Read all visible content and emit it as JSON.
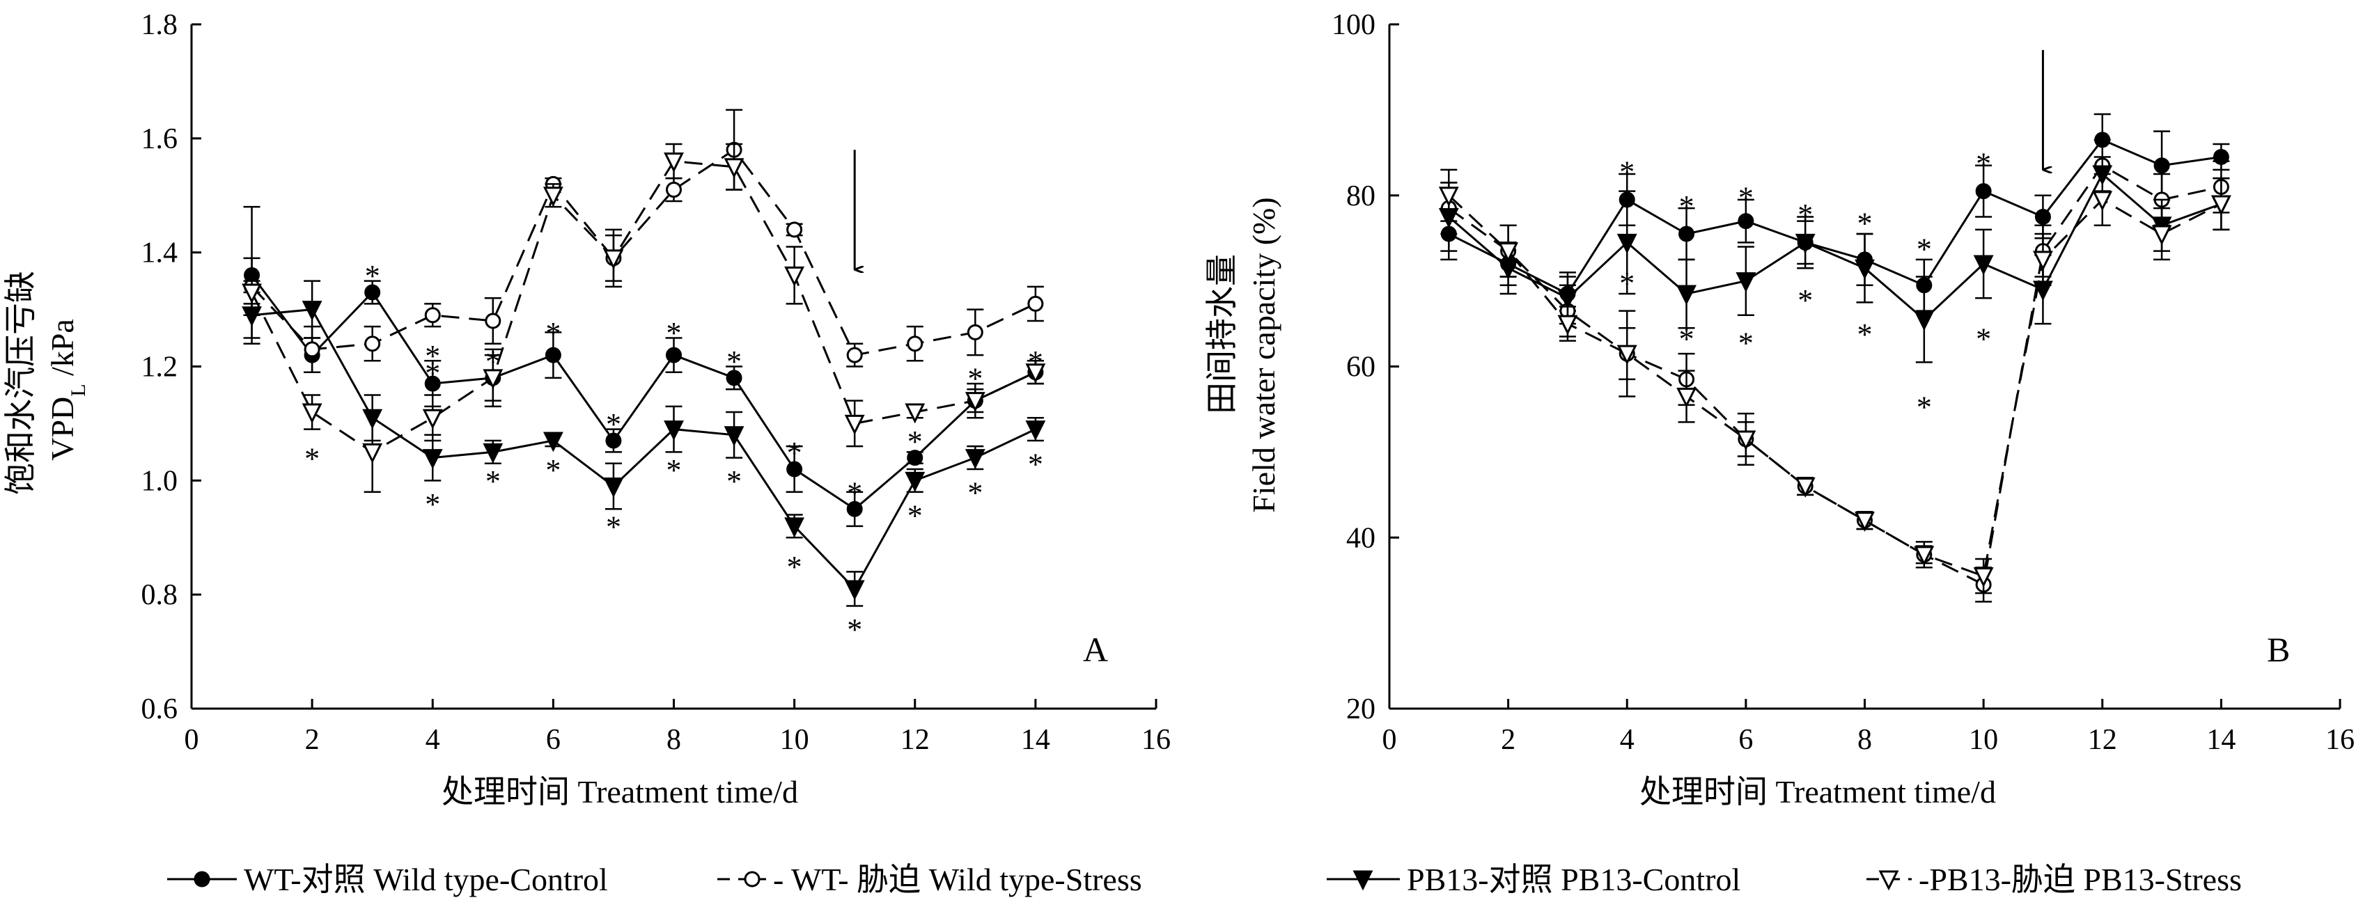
{
  "legend": [
    {
      "label": "WT-对照 Wild type-Control",
      "marker": "filled-circle",
      "dash": "solid"
    },
    {
      "label": "- WT- 胁迫 Wild type-Stress",
      "marker": "open-circle",
      "dash": "dashed"
    },
    {
      "label": "PB13-对照 PB13-Control",
      "marker": "filled-triangle-down",
      "dash": "solid"
    },
    {
      "label": "-PB13-胁迫 PB13-Stress",
      "marker": "open-triangle-down",
      "dash": "dashed"
    }
  ],
  "chart_data": [
    {
      "type": "line",
      "panel_label": "A",
      "xlabel": "处理时间  Treatment time/d",
      "ylabel_cn": "饱和水汽压亏缺",
      "ylabel_en": "VPD",
      "ylabel_sub": "L",
      "ylabel_unit": " /kPa",
      "xlim": [
        0,
        16
      ],
      "ylim": [
        0.6,
        1.8
      ],
      "xticks": [
        0,
        2,
        4,
        6,
        8,
        10,
        12,
        14,
        16
      ],
      "yticks": [
        0.6,
        0.8,
        1.0,
        1.2,
        1.4,
        1.6,
        1.8
      ],
      "ytick_labels": [
        "0.6",
        "0.8",
        "1.0",
        "1.2",
        "1.4",
        "1.6",
        "1.8"
      ],
      "arrow_at": {
        "x": 11,
        "y_from": 1.58,
        "y_to": 1.37
      },
      "series": [
        {
          "id": "wt_control",
          "marker": "filled-circle",
          "dash": "solid",
          "x": [
            1,
            2,
            3,
            4,
            5,
            6,
            7,
            8,
            9,
            10,
            11,
            12,
            13,
            14
          ],
          "y": [
            1.36,
            1.22,
            1.33,
            1.17,
            1.18,
            1.22,
            1.07,
            1.22,
            1.18,
            1.02,
            0.95,
            1.04,
            1.14,
            1.19
          ],
          "err": [
            0.12,
            0.03,
            0.02,
            0.04,
            0.04,
            0.04,
            0.02,
            0.03,
            0.02,
            0.04,
            0.03,
            0.01,
            0.03,
            0.02
          ]
        },
        {
          "id": "wt_stress",
          "marker": "open-circle",
          "dash": "dashed",
          "x": [
            1,
            2,
            3,
            4,
            5,
            6,
            7,
            8,
            9,
            10,
            11,
            12,
            13,
            14
          ],
          "y": [
            1.34,
            1.23,
            1.24,
            1.29,
            1.28,
            1.52,
            1.39,
            1.51,
            1.58,
            1.44,
            1.22,
            1.24,
            1.26,
            1.31
          ],
          "err": [
            0.05,
            0.04,
            0.03,
            0.02,
            0.04,
            0.01,
            0.05,
            0.02,
            0.07,
            0.01,
            0.02,
            0.03,
            0.04,
            0.03
          ]
        },
        {
          "id": "pb13_control",
          "marker": "filled-triangle-down",
          "dash": "solid",
          "x": [
            1,
            2,
            3,
            4,
            5,
            6,
            7,
            8,
            9,
            10,
            11,
            12,
            13,
            14
          ],
          "y": [
            1.29,
            1.3,
            1.11,
            1.04,
            1.05,
            1.07,
            0.99,
            1.09,
            1.08,
            0.92,
            0.81,
            1.0,
            1.04,
            1.09
          ],
          "err": [
            0.04,
            0.05,
            0.04,
            0.04,
            0.02,
            0.01,
            0.04,
            0.04,
            0.04,
            0.02,
            0.03,
            0.02,
            0.02,
            0.02
          ]
        },
        {
          "id": "pb13_stress",
          "marker": "open-triangle-down",
          "dash": "dashed",
          "x": [
            1,
            2,
            3,
            4,
            5,
            6,
            7,
            8,
            9,
            10,
            11,
            12,
            13,
            14
          ],
          "y": [
            1.33,
            1.12,
            1.05,
            1.11,
            1.18,
            1.5,
            1.39,
            1.56,
            1.55,
            1.36,
            1.1,
            1.12,
            1.14,
            1.19
          ],
          "err": [
            0.02,
            0.03,
            0.07,
            0.04,
            0.05,
            0.02,
            0.04,
            0.03,
            0.04,
            0.05,
            0.04,
            0.01,
            0.02,
            0.02
          ]
        }
      ],
      "significance": [
        {
          "x": 3,
          "y": 1.37
        },
        {
          "x": 4,
          "y": 1.2
        },
        {
          "x": 4,
          "y": 0.97
        },
        {
          "x": 5,
          "y": 1.22
        },
        {
          "x": 5,
          "y": 1.01
        },
        {
          "x": 6,
          "y": 1.27
        },
        {
          "x": 6,
          "y": 1.03
        },
        {
          "x": 7,
          "y": 1.11
        },
        {
          "x": 7,
          "y": 0.93
        },
        {
          "x": 8,
          "y": 1.27
        },
        {
          "x": 8,
          "y": 1.03
        },
        {
          "x": 9,
          "y": 1.22
        },
        {
          "x": 9,
          "y": 1.01
        },
        {
          "x": 10,
          "y": 1.06
        },
        {
          "x": 10,
          "y": 0.86
        },
        {
          "x": 11,
          "y": 0.99
        },
        {
          "x": 11,
          "y": 0.75
        },
        {
          "x": 12,
          "y": 1.08
        },
        {
          "x": 12,
          "y": 0.95
        },
        {
          "x": 13,
          "y": 1.19
        },
        {
          "x": 13,
          "y": 0.99
        },
        {
          "x": 14,
          "y": 1.22
        },
        {
          "x": 14,
          "y": 1.04
        },
        {
          "x": 2,
          "y": 1.05
        },
        {
          "x": 4,
          "y": 1.23
        }
      ]
    },
    {
      "type": "line",
      "panel_label": "B",
      "xlabel": "处理时间  Treatment time/d",
      "ylabel_cn": "田间持水量",
      "ylabel_en": "Field water capacity (%)",
      "xlim": [
        0,
        16
      ],
      "ylim": [
        20,
        100
      ],
      "xticks": [
        0,
        2,
        4,
        6,
        8,
        10,
        12,
        14,
        16
      ],
      "yticks": [
        20,
        40,
        60,
        80,
        100
      ],
      "ytick_labels": [
        "20",
        "40",
        "60",
        "80",
        "100"
      ],
      "arrow_at": {
        "x": 11,
        "y_from": 97,
        "y_to": 83
      },
      "series": [
        {
          "id": "wt_control",
          "marker": "filled-circle",
          "dash": "solid",
          "x": [
            1,
            2,
            3,
            4,
            5,
            6,
            7,
            8,
            9,
            10,
            11,
            12,
            13,
            14
          ],
          "y": [
            75.5,
            72,
            68.5,
            79.5,
            75.5,
            77,
            74.5,
            72.5,
            69.5,
            80.5,
            77.5,
            86.5,
            83.5,
            84.5
          ],
          "err": [
            3,
            2.5,
            2,
            3,
            3,
            2.5,
            2.5,
            3,
            3,
            3,
            2.5,
            3,
            4,
            1.5
          ]
        },
        {
          "id": "wt_stress",
          "marker": "open-circle",
          "dash": "dashed",
          "x": [
            1,
            2,
            3,
            4,
            5,
            6,
            7,
            8,
            9,
            10,
            11,
            12,
            13,
            14
          ],
          "y": [
            78.5,
            73.5,
            66.5,
            61.5,
            58.5,
            51.5,
            46,
            42,
            38,
            34.5,
            73.5,
            83.5,
            79.5,
            81
          ],
          "err": [
            3,
            3,
            3,
            5,
            3,
            3,
            1,
            1,
            1.5,
            2,
            3,
            3,
            3,
            3
          ]
        },
        {
          "id": "pb13_control",
          "marker": "filled-triangle-down",
          "dash": "solid",
          "x": [
            1,
            2,
            3,
            4,
            5,
            6,
            7,
            8,
            9,
            10,
            11,
            12,
            13,
            14
          ],
          "y": [
            77.5,
            71.5,
            68,
            74.5,
            68.5,
            70,
            74.5,
            71.5,
            65.5,
            72,
            69,
            82.5,
            76.5,
            79
          ],
          "err": [
            4,
            3,
            3,
            6,
            4,
            4,
            3,
            4,
            5,
            4,
            4,
            2,
            3,
            3
          ]
        },
        {
          "id": "pb13_stress",
          "marker": "open-triangle-down",
          "dash": "dashed",
          "x": [
            1,
            2,
            3,
            4,
            5,
            6,
            7,
            8,
            9,
            10,
            11,
            12,
            13,
            14
          ],
          "y": [
            80,
            73.5,
            65,
            61.5,
            56.5,
            51.5,
            46,
            42,
            38,
            35.5,
            72.5,
            79.5,
            75.5,
            79
          ],
          "err": [
            3,
            3,
            2,
            3,
            3,
            2,
            1,
            1,
            1,
            2,
            3,
            3,
            3,
            3
          ]
        }
      ],
      "significance": [
        {
          "x": 4,
          "y": 83.5
        },
        {
          "x": 4,
          "y": 70.5
        },
        {
          "x": 5,
          "y": 79.5
        },
        {
          "x": 5,
          "y": 64
        },
        {
          "x": 6,
          "y": 80.5
        },
        {
          "x": 6,
          "y": 63.5
        },
        {
          "x": 7,
          "y": 78.5
        },
        {
          "x": 7,
          "y": 68.5
        },
        {
          "x": 8,
          "y": 77.5
        },
        {
          "x": 8,
          "y": 64.5
        },
        {
          "x": 9,
          "y": 74.5
        },
        {
          "x": 9,
          "y": 56
        },
        {
          "x": 10,
          "y": 84.5
        },
        {
          "x": 10,
          "y": 64
        }
      ]
    }
  ]
}
